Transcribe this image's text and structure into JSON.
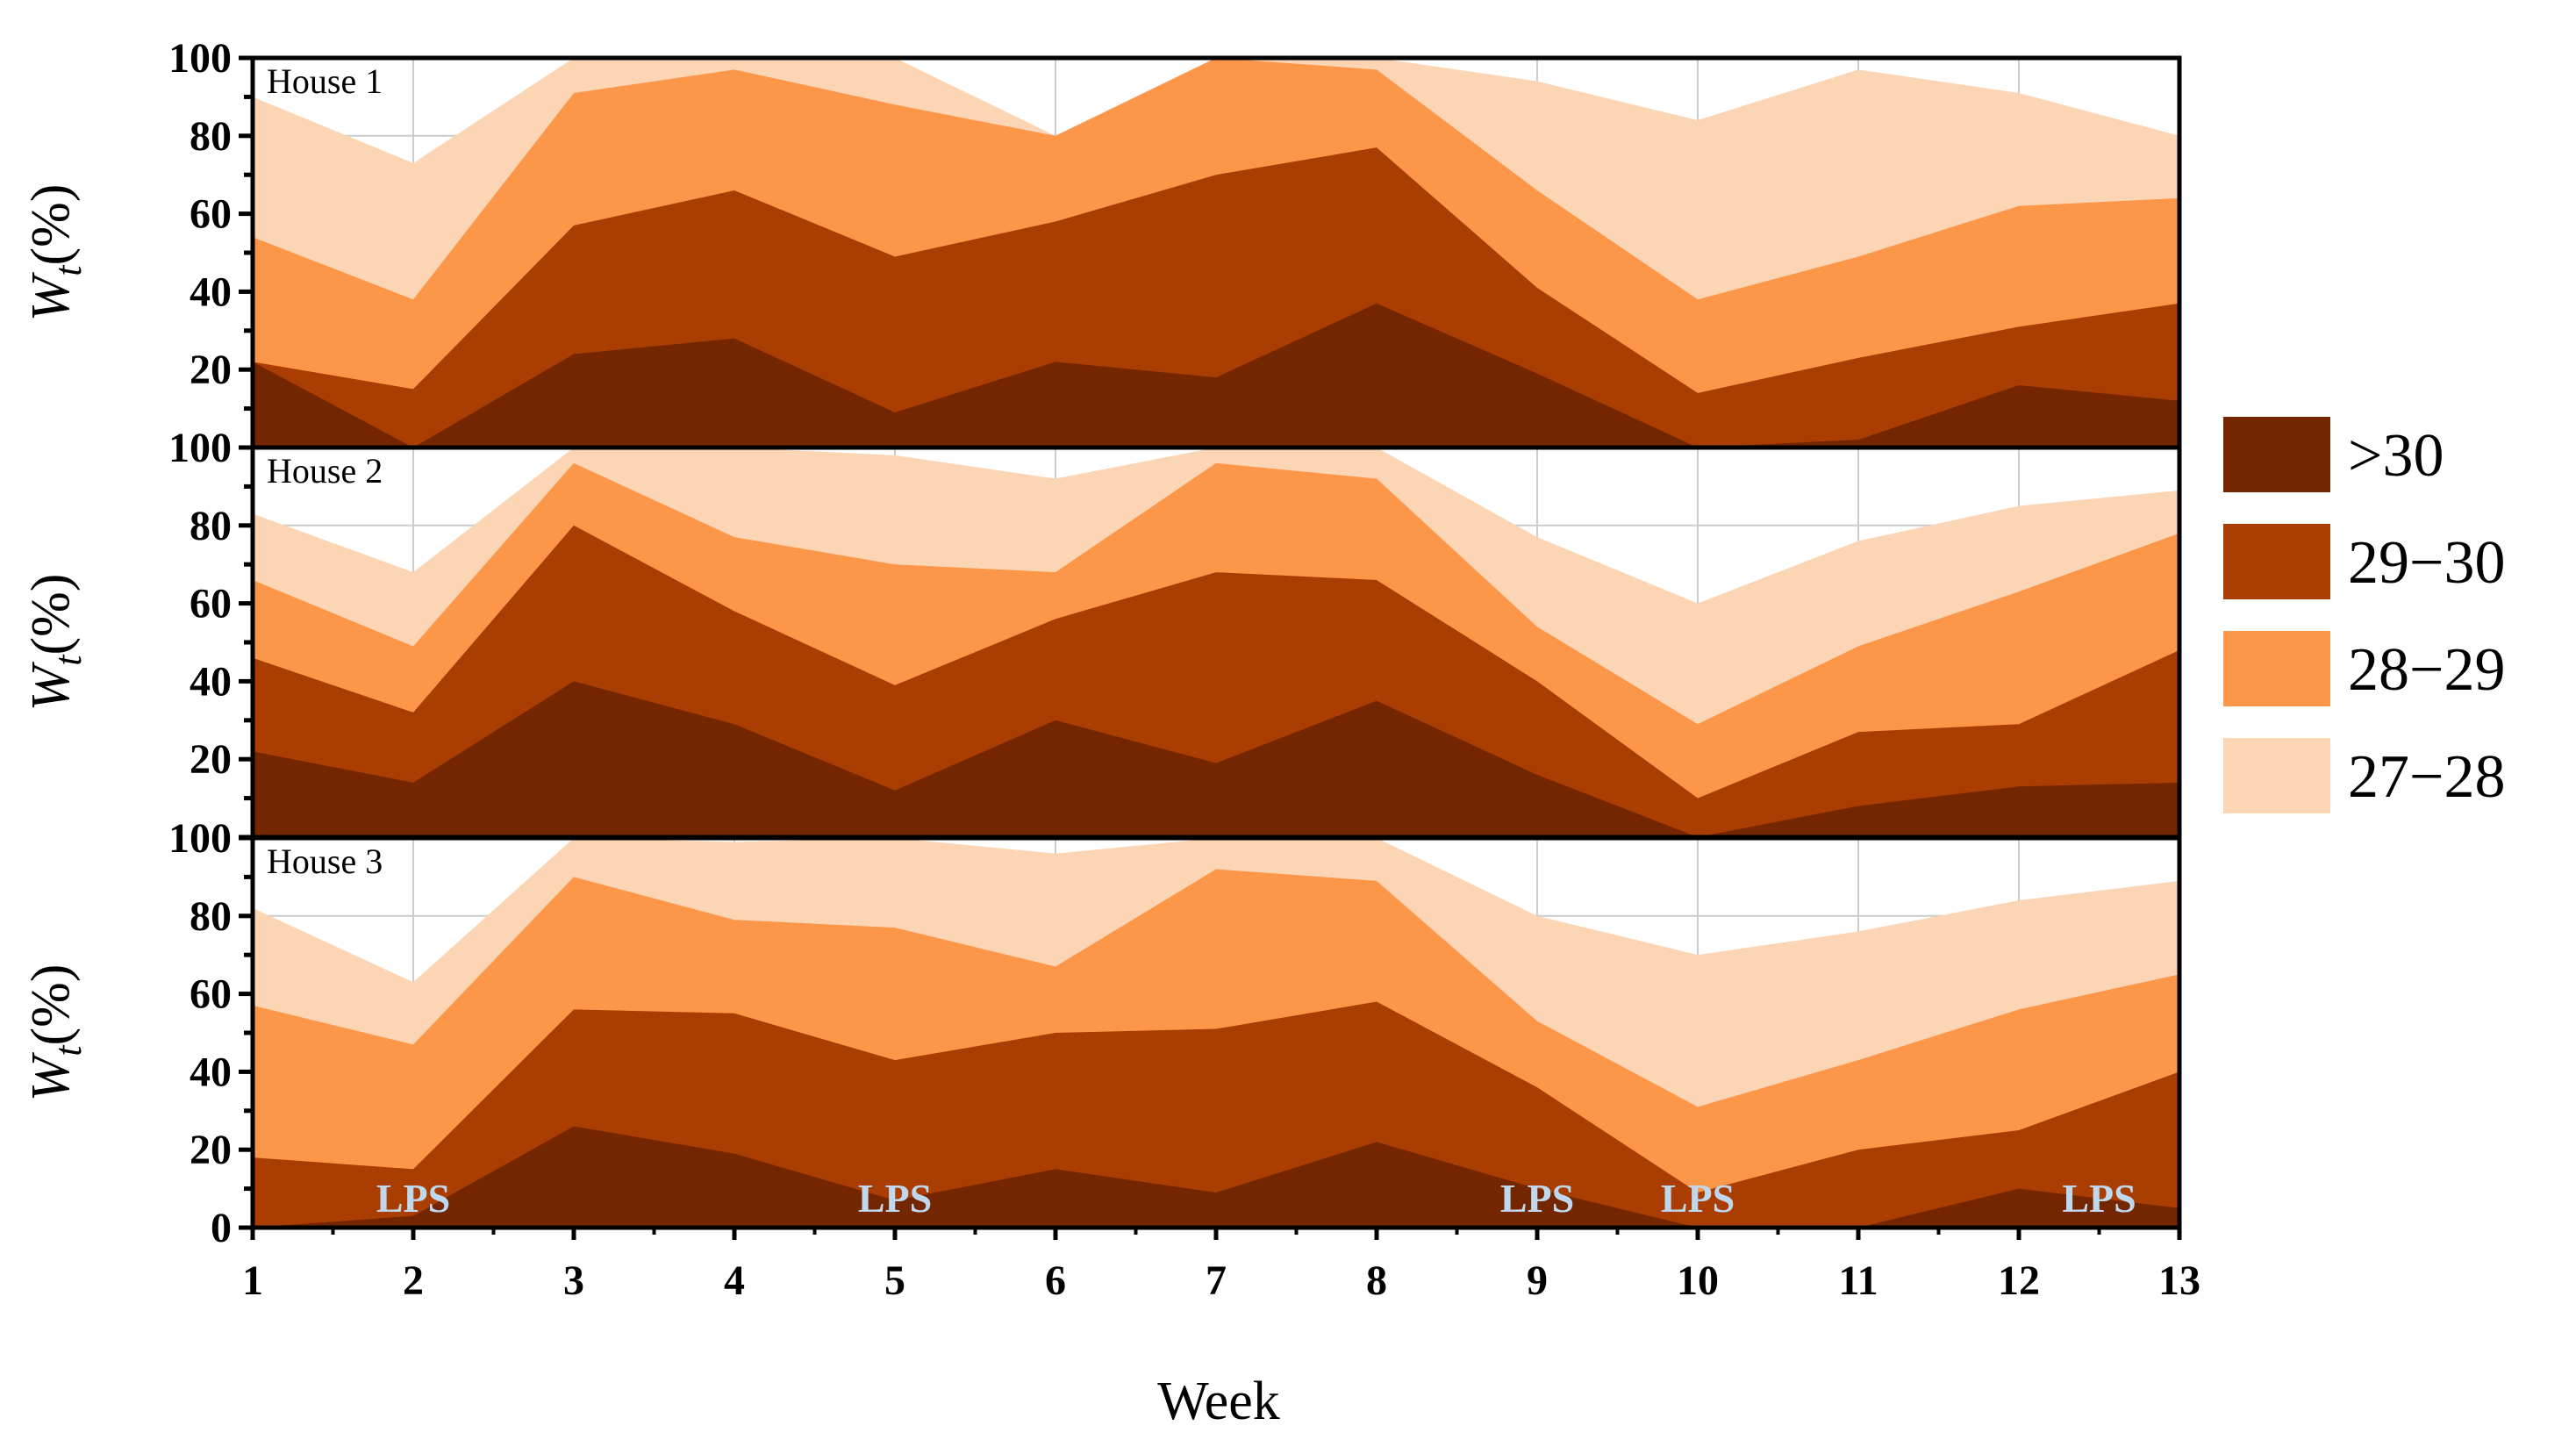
{
  "chart_data": {
    "type": "area",
    "stacked": true,
    "xlabel": "Week",
    "ylabel": "W",
    "ylabel_sub": "t",
    "ylabel_suffix": "(%)",
    "x": [
      1,
      2,
      3,
      4,
      5,
      6,
      7,
      8,
      9,
      10,
      11,
      12,
      13
    ],
    "xlim": [
      1,
      13
    ],
    "ylim": [
      0,
      100
    ],
    "yticks": [
      0,
      20,
      40,
      60,
      80,
      100
    ],
    "grid": true,
    "legend_position": "right",
    "legend": [
      {
        "name": ">30",
        "color": "#742600"
      },
      {
        "name": "29−30",
        "color": "#aa3e02"
      },
      {
        "name": "28−29",
        "color": "#fc9649"
      },
      {
        "name": "27−28",
        "color": "#fcd5b4"
      }
    ],
    "panels": [
      {
        "title": "House 1",
        "series": [
          {
            "name": ">30",
            "values": [
              22,
              0,
              24,
              28,
              9,
              22,
              18,
              37,
              19,
              0,
              2,
              16,
              12
            ]
          },
          {
            "name": "29−30",
            "values": [
              0,
              15,
              33,
              38,
              40,
              36,
              52,
              40,
              22,
              14,
              21,
              15,
              25
            ]
          },
          {
            "name": "28−29",
            "values": [
              32,
              23,
              34,
              31,
              39,
              22,
              30,
              20,
              25,
              24,
              26,
              31,
              27
            ]
          },
          {
            "name": "27−28",
            "values": [
              36,
              35,
              9,
              3,
              12,
              0,
              0,
              3,
              28,
              46,
              48,
              29,
              16
            ]
          }
        ]
      },
      {
        "title": "House 2",
        "series": [
          {
            "name": ">30",
            "values": [
              22,
              14,
              40,
              29,
              12,
              30,
              19,
              35,
              16,
              0,
              8,
              13,
              14
            ]
          },
          {
            "name": "29−30",
            "values": [
              24,
              18,
              40,
              29,
              27,
              26,
              49,
              31,
              24,
              10,
              19,
              16,
              34
            ]
          },
          {
            "name": "28−29",
            "values": [
              20,
              17,
              16,
              19,
              31,
              12,
              28,
              26,
              14,
              19,
              22,
              34,
              30
            ]
          },
          {
            "name": "27−28",
            "values": [
              17,
              19,
              4,
              23,
              28,
              24,
              4,
              8,
              23,
              31,
              27,
              22,
              11
            ]
          }
        ]
      },
      {
        "title": "House 3",
        "series": [
          {
            "name": ">30",
            "values": [
              0,
              3,
              26,
              19,
              7,
              15,
              9,
              22,
              10,
              0,
              0,
              10,
              5
            ]
          },
          {
            "name": "29−30",
            "values": [
              18,
              12,
              30,
              36,
              36,
              35,
              42,
              36,
              26,
              9,
              20,
              15,
              35
            ]
          },
          {
            "name": "28−29",
            "values": [
              39,
              32,
              34,
              24,
              34,
              17,
              41,
              31,
              17,
              22,
              23,
              31,
              25
            ]
          },
          {
            "name": "27−28",
            "values": [
              25,
              16,
              10,
              20,
              23,
              29,
              8,
              11,
              27,
              39,
              33,
              28,
              24
            ]
          }
        ],
        "annotations": [
          {
            "text": "LPS",
            "x": 2
          },
          {
            "text": "LPS",
            "x": 5
          },
          {
            "text": "LPS",
            "x": 9
          },
          {
            "text": "LPS",
            "x": 10
          },
          {
            "text": "LPS",
            "x": 12.5
          }
        ]
      }
    ]
  }
}
